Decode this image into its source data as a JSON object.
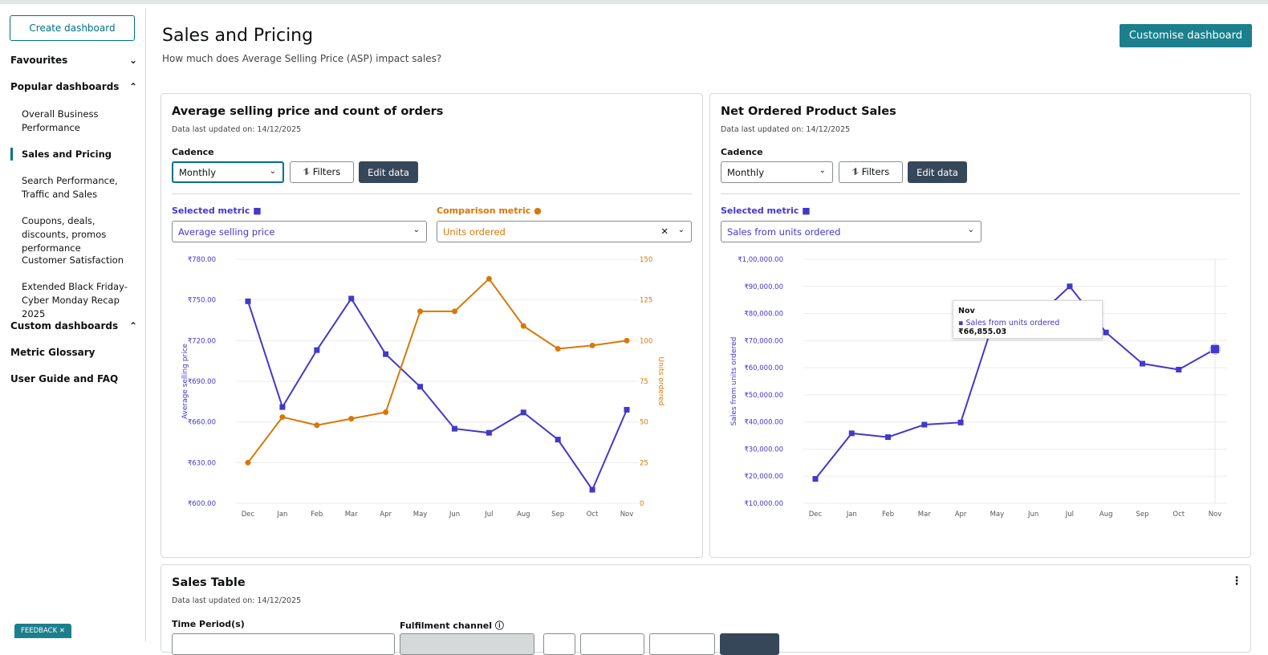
{
  "sidebar": {
    "create": "Create dashboard",
    "items": [
      {
        "label": "Favourites",
        "type": "head",
        "chev": "⌄"
      },
      {
        "label": "Popular dashboards",
        "type": "head",
        "chev": "⌃"
      },
      {
        "label": "Overall Business Performance",
        "type": "item"
      },
      {
        "label": "Sales and Pricing",
        "type": "item",
        "active": true
      },
      {
        "label": "Search Performance, Traffic and Sales",
        "type": "item"
      },
      {
        "label": "Coupons, deals, discounts, promos performance",
        "type": "item"
      },
      {
        "label": "Customer Satisfaction",
        "type": "item"
      },
      {
        "label": "Extended Black Friday-Cyber Monday Recap 2025",
        "type": "item"
      },
      {
        "label": "Custom dashboards",
        "type": "head",
        "chev": "⌃"
      },
      {
        "label": "Metric Glossary",
        "type": "head"
      },
      {
        "label": "User Guide and FAQ",
        "type": "head"
      }
    ],
    "feedback": "FEEDBACK ✕"
  },
  "header": {
    "title": "Sales and Pricing",
    "subtitle": "How much does Average Selling Price (ASP) impact sales?",
    "customise": "Customise dashboard"
  },
  "cards": {
    "asp": {
      "title": "Average selling price and count of orders",
      "updated": "Data last updated on: 14/12/2025",
      "cadence_label": "Cadence",
      "cadence": "Monthly",
      "filters": "⥮ Filters",
      "edit": "Edit data",
      "selected_label": "Selected metric ■",
      "selected": "Average selling price",
      "comparison_label": "Comparison metric ●",
      "comparison": "Units ordered"
    },
    "nops": {
      "title": "Net Ordered Product Sales",
      "updated": "Data last updated on: 14/12/2025",
      "cadence_label": "Cadence",
      "cadence": "Monthly",
      "filters": "⥮ Filters",
      "edit": "Edit data",
      "selected_label": "Selected metric ■",
      "selected": "Sales from units ordered",
      "tooltip_month": "Nov",
      "tooltip_label": "Sales from units ordered",
      "tooltip_value": "₹66,855.03"
    },
    "table": {
      "title": "Sales Table",
      "updated": "Data last updated on: 14/12/2025",
      "time_label": "Time Period(s)",
      "channel_label": "Fulfilment channel ⓘ"
    }
  },
  "colors": {
    "primary": "#4338ca",
    "comparison": "#d97706",
    "teal": "#1b7f8e"
  },
  "chart_data": [
    {
      "type": "line",
      "categories": [
        "Dec",
        "Jan",
        "Feb",
        "Mar",
        "Apr",
        "May",
        "Jun",
        "Jul",
        "Aug",
        "Sep",
        "Oct",
        "Nov"
      ],
      "series": [
        {
          "name": "Average selling price",
          "axis": "left",
          "values": [
            749,
            671,
            713,
            751,
            710,
            686,
            655,
            652,
            667,
            647,
            610,
            669
          ]
        },
        {
          "name": "Units ordered",
          "axis": "right",
          "values": [
            25,
            53,
            48,
            52,
            56,
            118,
            118,
            138,
            109,
            95,
            97,
            100
          ]
        }
      ],
      "ylabel": "Average selling price",
      "y2label": "Units ordered",
      "yticks": [
        "₹600.00",
        "₹630.00",
        "₹660.00",
        "₹690.00",
        "₹720.00",
        "₹750.00",
        "₹780.00"
      ],
      "ylim": [
        600,
        780
      ],
      "y2ticks": [
        "0",
        "25",
        "50",
        "75",
        "100",
        "125",
        "150"
      ],
      "y2lim": [
        0,
        150
      ],
      "grid": true
    },
    {
      "type": "line",
      "categories": [
        "Dec",
        "Jan",
        "Feb",
        "Mar",
        "Apr",
        "May",
        "Jun",
        "Jul",
        "Aug",
        "Sep",
        "Oct",
        "Nov"
      ],
      "series": [
        {
          "name": "Sales from units ordered",
          "values": [
            19000,
            35800,
            34400,
            39000,
            39800,
            81000,
            77500,
            90000,
            73000,
            61500,
            59300,
            66855.03
          ]
        }
      ],
      "ylabel": "Sales from units ordered",
      "yticks": [
        "₹10,000.00",
        "₹20,000.00",
        "₹30,000.00",
        "₹40,000.00",
        "₹50,000.00",
        "₹60,000.00",
        "₹70,000.00",
        "₹80,000.00",
        "₹90,000.00",
        "₹1,00,000.00"
      ],
      "ylim": [
        10000,
        100000
      ],
      "grid": true
    }
  ]
}
